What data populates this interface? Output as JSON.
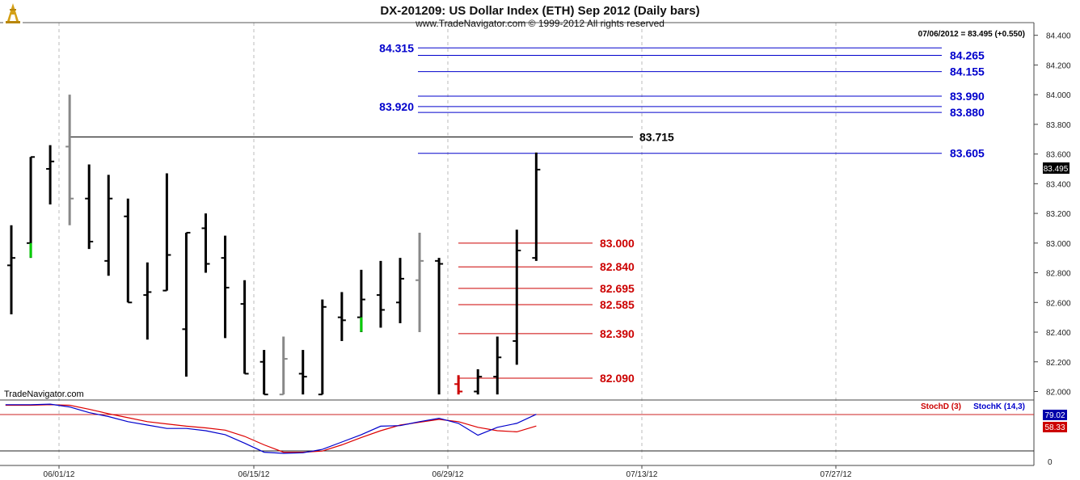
{
  "chart_data": {
    "type": "ohlc",
    "title": "DX-201209:  US Dollar Index (ETH) Sep 2012  (Daily bars)",
    "subtitle": "www.TradeNavigator.com © 1999-2012 All rights reserved",
    "watermark": "TradeNavigator.com",
    "last_bar_info": "07/06/2012 = 83.495 (+0.550)",
    "last_price_label": "83.495",
    "ylim": [
      81.97,
      84.42
    ],
    "y_ticks": [
      "84.400",
      "84.200",
      "84.000",
      "83.800",
      "83.600",
      "83.400",
      "83.200",
      "83.000",
      "82.800",
      "82.600",
      "82.400",
      "82.200",
      "82.000"
    ],
    "x_ticks": [
      "06/01/12",
      "06/15/12",
      "06/29/12",
      "07/13/12",
      "07/27/12"
    ],
    "bars": [
      {
        "x": 0,
        "o": 82.85,
        "h": 83.12,
        "l": 82.52,
        "c": 82.9,
        "color": "#000000"
      },
      {
        "x": 1,
        "o": 83.0,
        "h": 83.58,
        "l": 82.9,
        "c": 83.58,
        "color": "#000000",
        "tick_color": "#00cc00"
      },
      {
        "x": 2,
        "o": 83.5,
        "h": 83.66,
        "l": 83.26,
        "c": 83.55,
        "color": "#000000"
      },
      {
        "x": 3,
        "o": 83.65,
        "h": 84.0,
        "l": 83.12,
        "c": 83.3,
        "color": "#888888"
      },
      {
        "x": 4,
        "o": 83.3,
        "h": 83.53,
        "l": 82.96,
        "c": 83.01,
        "color": "#000000"
      },
      {
        "x": 5,
        "o": 82.88,
        "h": 83.46,
        "l": 82.78,
        "c": 83.3,
        "color": "#000000"
      },
      {
        "x": 6,
        "o": 83.18,
        "h": 83.3,
        "l": 82.6,
        "c": 82.6,
        "color": "#000000"
      },
      {
        "x": 7,
        "o": 82.65,
        "h": 82.87,
        "l": 82.35,
        "c": 82.67,
        "color": "#000000"
      },
      {
        "x": 8,
        "o": 82.68,
        "h": 83.47,
        "l": 82.68,
        "c": 82.92,
        "color": "#000000"
      },
      {
        "x": 9,
        "o": 82.42,
        "h": 83.07,
        "l": 82.1,
        "c": 83.07,
        "color": "#000000"
      },
      {
        "x": 10,
        "o": 83.1,
        "h": 83.2,
        "l": 82.8,
        "c": 82.86,
        "color": "#000000"
      },
      {
        "x": 11,
        "o": 82.9,
        "h": 83.05,
        "l": 82.36,
        "c": 82.7,
        "color": "#000000"
      },
      {
        "x": 12,
        "o": 82.59,
        "h": 82.75,
        "l": 82.12,
        "c": 82.12,
        "color": "#000000"
      },
      {
        "x": 13,
        "o": 82.2,
        "h": 82.28,
        "l": 81.98,
        "c": 81.98,
        "color": "#000000"
      },
      {
        "x": 14,
        "o": 81.98,
        "h": 82.37,
        "l": 81.98,
        "c": 82.22,
        "color": "#888888"
      },
      {
        "x": 15,
        "o": 82.12,
        "h": 82.28,
        "l": 81.98,
        "c": 82.1,
        "color": "#000000"
      },
      {
        "x": 16,
        "o": 81.98,
        "h": 82.62,
        "l": 81.98,
        "c": 82.57,
        "color": "#000000"
      },
      {
        "x": 17,
        "o": 82.5,
        "h": 82.67,
        "l": 82.34,
        "c": 82.48,
        "color": "#000000"
      },
      {
        "x": 18,
        "o": 82.5,
        "h": 82.82,
        "l": 82.4,
        "c": 82.62,
        "color": "#000000",
        "tick_color": "#00cc00"
      },
      {
        "x": 19,
        "o": 82.65,
        "h": 82.88,
        "l": 82.43,
        "c": 82.55,
        "color": "#000000"
      },
      {
        "x": 20,
        "o": 82.6,
        "h": 82.9,
        "l": 82.46,
        "c": 82.76,
        "color": "#000000"
      },
      {
        "x": 21,
        "o": 82.75,
        "h": 83.07,
        "l": 82.4,
        "c": 82.88,
        "color": "#888888"
      },
      {
        "x": 22,
        "o": 82.88,
        "h": 82.9,
        "l": 81.98,
        "c": 82.86,
        "color": "#000000"
      },
      {
        "x": 23,
        "o": 82.05,
        "h": 82.11,
        "l": 81.98,
        "c": 82.0,
        "color": "#cc0000"
      },
      {
        "x": 24,
        "o": 82.0,
        "h": 82.15,
        "l": 81.98,
        "c": 82.1,
        "color": "#000000"
      },
      {
        "x": 25,
        "o": 82.1,
        "h": 82.37,
        "l": 81.98,
        "c": 82.23,
        "color": "#000000"
      },
      {
        "x": 26,
        "o": 82.34,
        "h": 83.09,
        "l": 82.18,
        "c": 82.95,
        "color": "#000000"
      },
      {
        "x": 27,
        "o": 82.9,
        "h": 83.61,
        "l": 82.88,
        "c": 83.495,
        "color": "#000000"
      }
    ],
    "levels": [
      {
        "value": 84.315,
        "label": "84.315",
        "color": "#0000cc",
        "side": "left"
      },
      {
        "value": 84.265,
        "label": "84.265",
        "color": "#0000cc",
        "side": "right"
      },
      {
        "value": 84.155,
        "label": "84.155",
        "color": "#0000cc",
        "side": "right"
      },
      {
        "value": 83.99,
        "label": "83.990",
        "color": "#0000cc",
        "side": "right"
      },
      {
        "value": 83.92,
        "label": "83.920",
        "color": "#0000cc",
        "side": "left"
      },
      {
        "value": 83.88,
        "label": "83.880",
        "color": "#0000cc",
        "side": "right"
      },
      {
        "value": 83.715,
        "label": "83.715",
        "color": "#000000",
        "side": "right"
      },
      {
        "value": 83.605,
        "label": "83.605",
        "color": "#0000cc",
        "side": "right"
      },
      {
        "value": 83.0,
        "label": "83.000",
        "color": "#cc0000",
        "side": "right"
      },
      {
        "value": 82.84,
        "label": "82.840",
        "color": "#cc0000",
        "side": "right"
      },
      {
        "value": 82.695,
        "label": "82.695",
        "color": "#cc0000",
        "side": "right"
      },
      {
        "value": 82.585,
        "label": "82.585",
        "color": "#cc0000",
        "side": "right"
      },
      {
        "value": 82.39,
        "label": "82.390",
        "color": "#cc0000",
        "side": "right"
      },
      {
        "value": 82.09,
        "label": "82.090",
        "color": "#cc0000",
        "side": "right"
      }
    ],
    "stochastic": {
      "legend_d": "StochD (3)",
      "legend_k": "StochK (14,3)",
      "value_k": "79.02",
      "value_d": "58.33",
      "axis_label": "0",
      "ylim": [
        0,
        100
      ],
      "guide_levels": [
        80,
        20
      ],
      "x": [
        -0.3,
        0,
        1,
        2,
        3,
        4,
        5,
        6,
        7,
        8,
        9,
        10,
        11,
        12,
        13,
        14,
        15,
        16,
        17,
        18,
        19,
        20,
        21,
        22,
        23,
        24,
        25,
        26,
        27
      ],
      "stochK": [
        96,
        96,
        96,
        97,
        92,
        82,
        75,
        66,
        60,
        54,
        54,
        50,
        43,
        28,
        12,
        10,
        11,
        17,
        30,
        43,
        58,
        59,
        66,
        72,
        63,
        42,
        56,
        63,
        79.02
      ],
      "stochD": [
        95,
        95,
        95,
        96,
        95,
        88,
        80,
        73,
        66,
        62,
        58,
        55,
        51,
        40,
        25,
        12,
        12,
        14,
        25,
        38,
        50,
        60,
        65,
        70,
        66,
        56,
        50,
        48,
        58.33
      ]
    }
  }
}
